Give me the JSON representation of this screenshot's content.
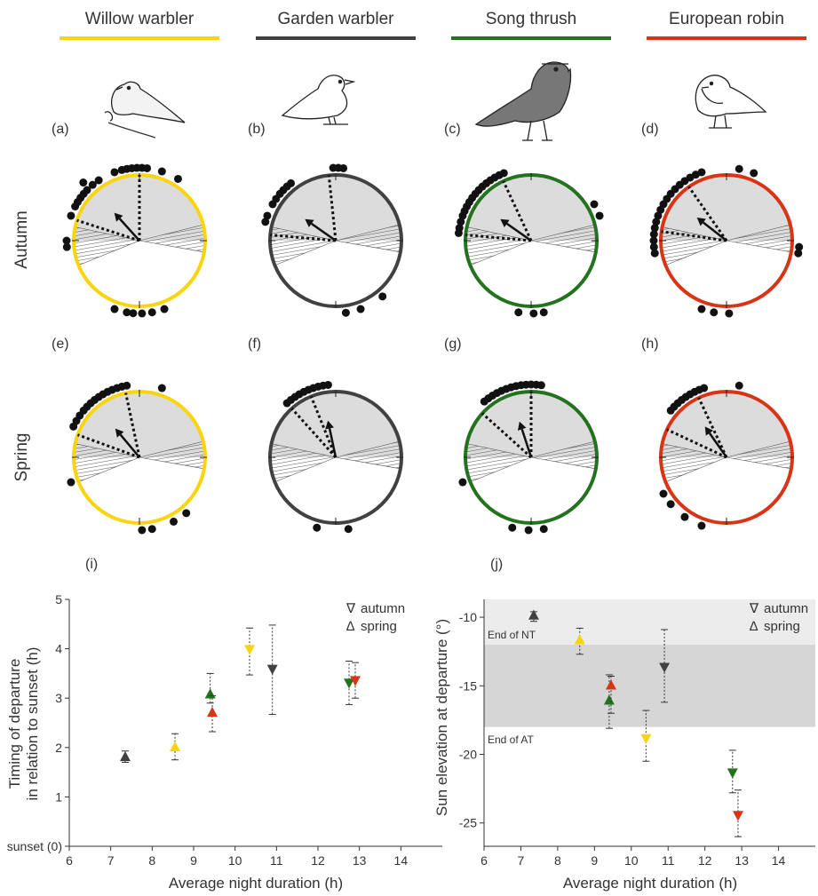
{
  "species": [
    {
      "name": "Willow warbler",
      "color": "#F9D40F"
    },
    {
      "name": "Garden warbler",
      "color": "#414141"
    },
    {
      "name": "Song thrush",
      "color": "#23731E"
    },
    {
      "name": "European robin",
      "color": "#D73515"
    }
  ],
  "seasons": [
    "Autumn",
    "Spring"
  ],
  "panel_letters": [
    "(a)",
    "(b)",
    "(c)",
    "(d)",
    "(e)",
    "(f)",
    "(g)",
    "(h)",
    "(i)",
    "(j)"
  ],
  "circular": {
    "autumn": [
      {
        "species": "Willow warbler",
        "mean_dir_deg": -42,
        "median_dir_deg": 0
      },
      {
        "species": "Garden warbler",
        "mean_dir_deg": -55,
        "median_dir_deg": -6
      },
      {
        "species": "Song thrush",
        "mean_dir_deg": -55,
        "median_dir_deg": -25
      },
      {
        "species": "European robin",
        "mean_dir_deg": -52,
        "median_dir_deg": -35
      }
    ],
    "spring": [
      {
        "species": "Willow warbler",
        "mean_dir_deg": -40,
        "median_dir_deg": -12
      },
      {
        "species": "Garden warbler",
        "mean_dir_deg": -12,
        "median_dir_deg": -22
      },
      {
        "species": "Song thrush",
        "mean_dir_deg": -18,
        "median_dir_deg": 0
      },
      {
        "species": "European robin",
        "mean_dir_deg": -35,
        "median_dir_deg": -25
      }
    ]
  },
  "chart_data": [
    {
      "type": "scatter",
      "panel": "(i)",
      "xlabel": "Average night duration (h)",
      "ylabel_lines": [
        "Timing of departure",
        "in relation to sunset (h)"
      ],
      "xlim": [
        6,
        15
      ],
      "ylim": [
        0,
        5
      ],
      "xticks": [
        6,
        7,
        8,
        9,
        10,
        11,
        12,
        13,
        14
      ],
      "yticks": [
        0,
        1,
        2,
        3,
        4,
        5
      ],
      "ytick_labels": [
        "sunset (0)",
        "1",
        "2",
        "3",
        "4",
        "5"
      ],
      "legend": {
        "position": "top-right",
        "entries": [
          {
            "symbol": "∇",
            "label": "autumn"
          },
          {
            "symbol": "∆",
            "label": "spring"
          }
        ]
      },
      "series": [
        {
          "species": "Garden warbler",
          "season": "spring",
          "x": 7.35,
          "y": 1.8,
          "lo": 1.7,
          "hi": 1.93,
          "color": "#414141"
        },
        {
          "species": "Willow warbler",
          "season": "spring",
          "x": 8.55,
          "y": 2.0,
          "lo": 1.75,
          "hi": 2.28,
          "color": "#F9D40F"
        },
        {
          "species": "Song thrush",
          "season": "spring",
          "x": 9.4,
          "y": 3.07,
          "lo": 2.9,
          "hi": 3.5,
          "color": "#23731E"
        },
        {
          "species": "European robin",
          "season": "spring",
          "x": 9.45,
          "y": 2.7,
          "lo": 2.32,
          "hi": 3.05,
          "color": "#D73515"
        },
        {
          "species": "Willow warbler",
          "season": "autumn",
          "x": 10.35,
          "y": 4.0,
          "lo": 3.47,
          "hi": 4.42,
          "color": "#F9D40F"
        },
        {
          "species": "Garden warbler",
          "season": "autumn",
          "x": 10.9,
          "y": 3.6,
          "lo": 2.67,
          "hi": 4.48,
          "color": "#414141"
        },
        {
          "species": "Song thrush",
          "season": "autumn",
          "x": 12.75,
          "y": 3.32,
          "lo": 2.87,
          "hi": 3.75,
          "color": "#23731E"
        },
        {
          "species": "European robin",
          "season": "autumn",
          "x": 12.9,
          "y": 3.37,
          "lo": 3.0,
          "hi": 3.72,
          "color": "#D73515"
        }
      ]
    },
    {
      "type": "scatter",
      "panel": "(j)",
      "xlabel": "Average night duration (h)",
      "ylabel": "Sun elevation at departure (°)",
      "xlim": [
        6,
        15
      ],
      "ylim": [
        -26.7,
        -8.7
      ],
      "xticks": [
        6,
        7,
        8,
        9,
        10,
        11,
        12,
        13,
        14
      ],
      "yticks": [
        -10,
        -15,
        -20,
        -25
      ],
      "ytick_labels": [
        "-10",
        "-15",
        "-20",
        "-25"
      ],
      "bands": [
        {
          "from": -8.7,
          "to": -12,
          "color": "#ececec",
          "label": "End of NT"
        },
        {
          "from": -12,
          "to": -18,
          "color": "#d6d6d6",
          "label": "End of AT"
        }
      ],
      "legend": {
        "position": "top-right",
        "entries": [
          {
            "symbol": "∇",
            "label": "autumn"
          },
          {
            "symbol": "∆",
            "label": "spring"
          }
        ]
      },
      "series": [
        {
          "species": "Garden warbler",
          "season": "spring",
          "x": 7.35,
          "y": -9.9,
          "lo": -10.3,
          "hi": -9.6,
          "color": "#414141"
        },
        {
          "species": "Willow warbler",
          "season": "spring",
          "x": 8.6,
          "y": -11.7,
          "lo": -12.7,
          "hi": -10.8,
          "color": "#F9D40F"
        },
        {
          "species": "Song thrush",
          "season": "spring",
          "x": 9.4,
          "y": -16.1,
          "lo": -18.1,
          "hi": -14.2,
          "color": "#23731E"
        },
        {
          "species": "European robin",
          "season": "spring",
          "x": 9.45,
          "y": -15.0,
          "lo": -17.0,
          "hi": -14.3,
          "color": "#D73515"
        },
        {
          "species": "Willow warbler",
          "season": "autumn",
          "x": 10.4,
          "y": -18.8,
          "lo": -20.5,
          "hi": -16.8,
          "color": "#F9D40F"
        },
        {
          "species": "Garden warbler",
          "season": "autumn",
          "x": 10.9,
          "y": -13.6,
          "lo": -16.2,
          "hi": -10.9,
          "color": "#414141"
        },
        {
          "species": "Song thrush",
          "season": "autumn",
          "x": 12.75,
          "y": -21.3,
          "lo": -22.8,
          "hi": -19.7,
          "color": "#23731E"
        },
        {
          "species": "European robin",
          "season": "autumn",
          "x": 12.9,
          "y": -24.4,
          "lo": -26.0,
          "hi": -22.6,
          "color": "#D73515"
        }
      ]
    }
  ]
}
